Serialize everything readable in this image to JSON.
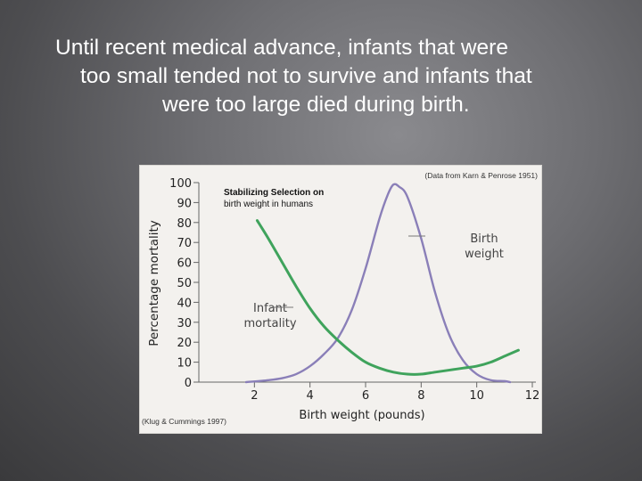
{
  "slide": {
    "lines": [
      "Until recent medical advance, infants that were",
      "too small tended not to survive and infants that",
      "were too large died during birth."
    ]
  },
  "chart_data": {
    "type": "line",
    "title": "Stabilizing Selection on birth weight in humans",
    "title_lines": [
      "Stabilizing Selection on",
      "birth weight in humans"
    ],
    "source_top": "(Data from Karn & Penrose 1951)",
    "source_bottom": "(Klug & Cummings 1997)",
    "xlabel": "Birth weight (pounds)",
    "ylabel": "Percentage mortality",
    "xlim": [
      0,
      12
    ],
    "ylim": [
      0,
      100
    ],
    "xticks": [
      2,
      4,
      6,
      8,
      10,
      12
    ],
    "yticks": [
      0,
      10,
      20,
      30,
      40,
      50,
      60,
      70,
      80,
      90,
      100
    ],
    "grid": false,
    "series": [
      {
        "name": "Infant mortality",
        "label_lines": [
          "Infant",
          "mortality"
        ],
        "color": "#3fa35c",
        "x": [
          2.1,
          2.5,
          3.0,
          3.5,
          4.0,
          4.5,
          5.0,
          5.5,
          6.0,
          6.5,
          7.0,
          7.5,
          8.0,
          8.5,
          9.0,
          9.5,
          10.0,
          10.5,
          11.0,
          11.5
        ],
        "y": [
          81,
          72,
          60,
          48,
          37,
          28,
          21,
          15,
          10,
          7,
          5,
          4,
          4,
          5,
          6,
          7,
          8,
          10,
          13,
          16
        ]
      },
      {
        "name": "Birth weight",
        "label_lines": [
          "Birth",
          "weight"
        ],
        "color": "#8a7fb8",
        "x": [
          1.7,
          2.5,
          3.0,
          3.5,
          4.0,
          4.5,
          5.0,
          5.5,
          6.0,
          6.5,
          6.8,
          7.0,
          7.2,
          7.5,
          8.0,
          8.5,
          9.0,
          9.5,
          10.0,
          10.5,
          11.0,
          11.2
        ],
        "y": [
          0,
          1,
          2,
          4,
          8,
          14,
          22,
          36,
          57,
          82,
          94,
          99,
          98,
          93,
          72,
          45,
          24,
          11,
          4,
          1,
          0.5,
          0
        ]
      }
    ]
  }
}
